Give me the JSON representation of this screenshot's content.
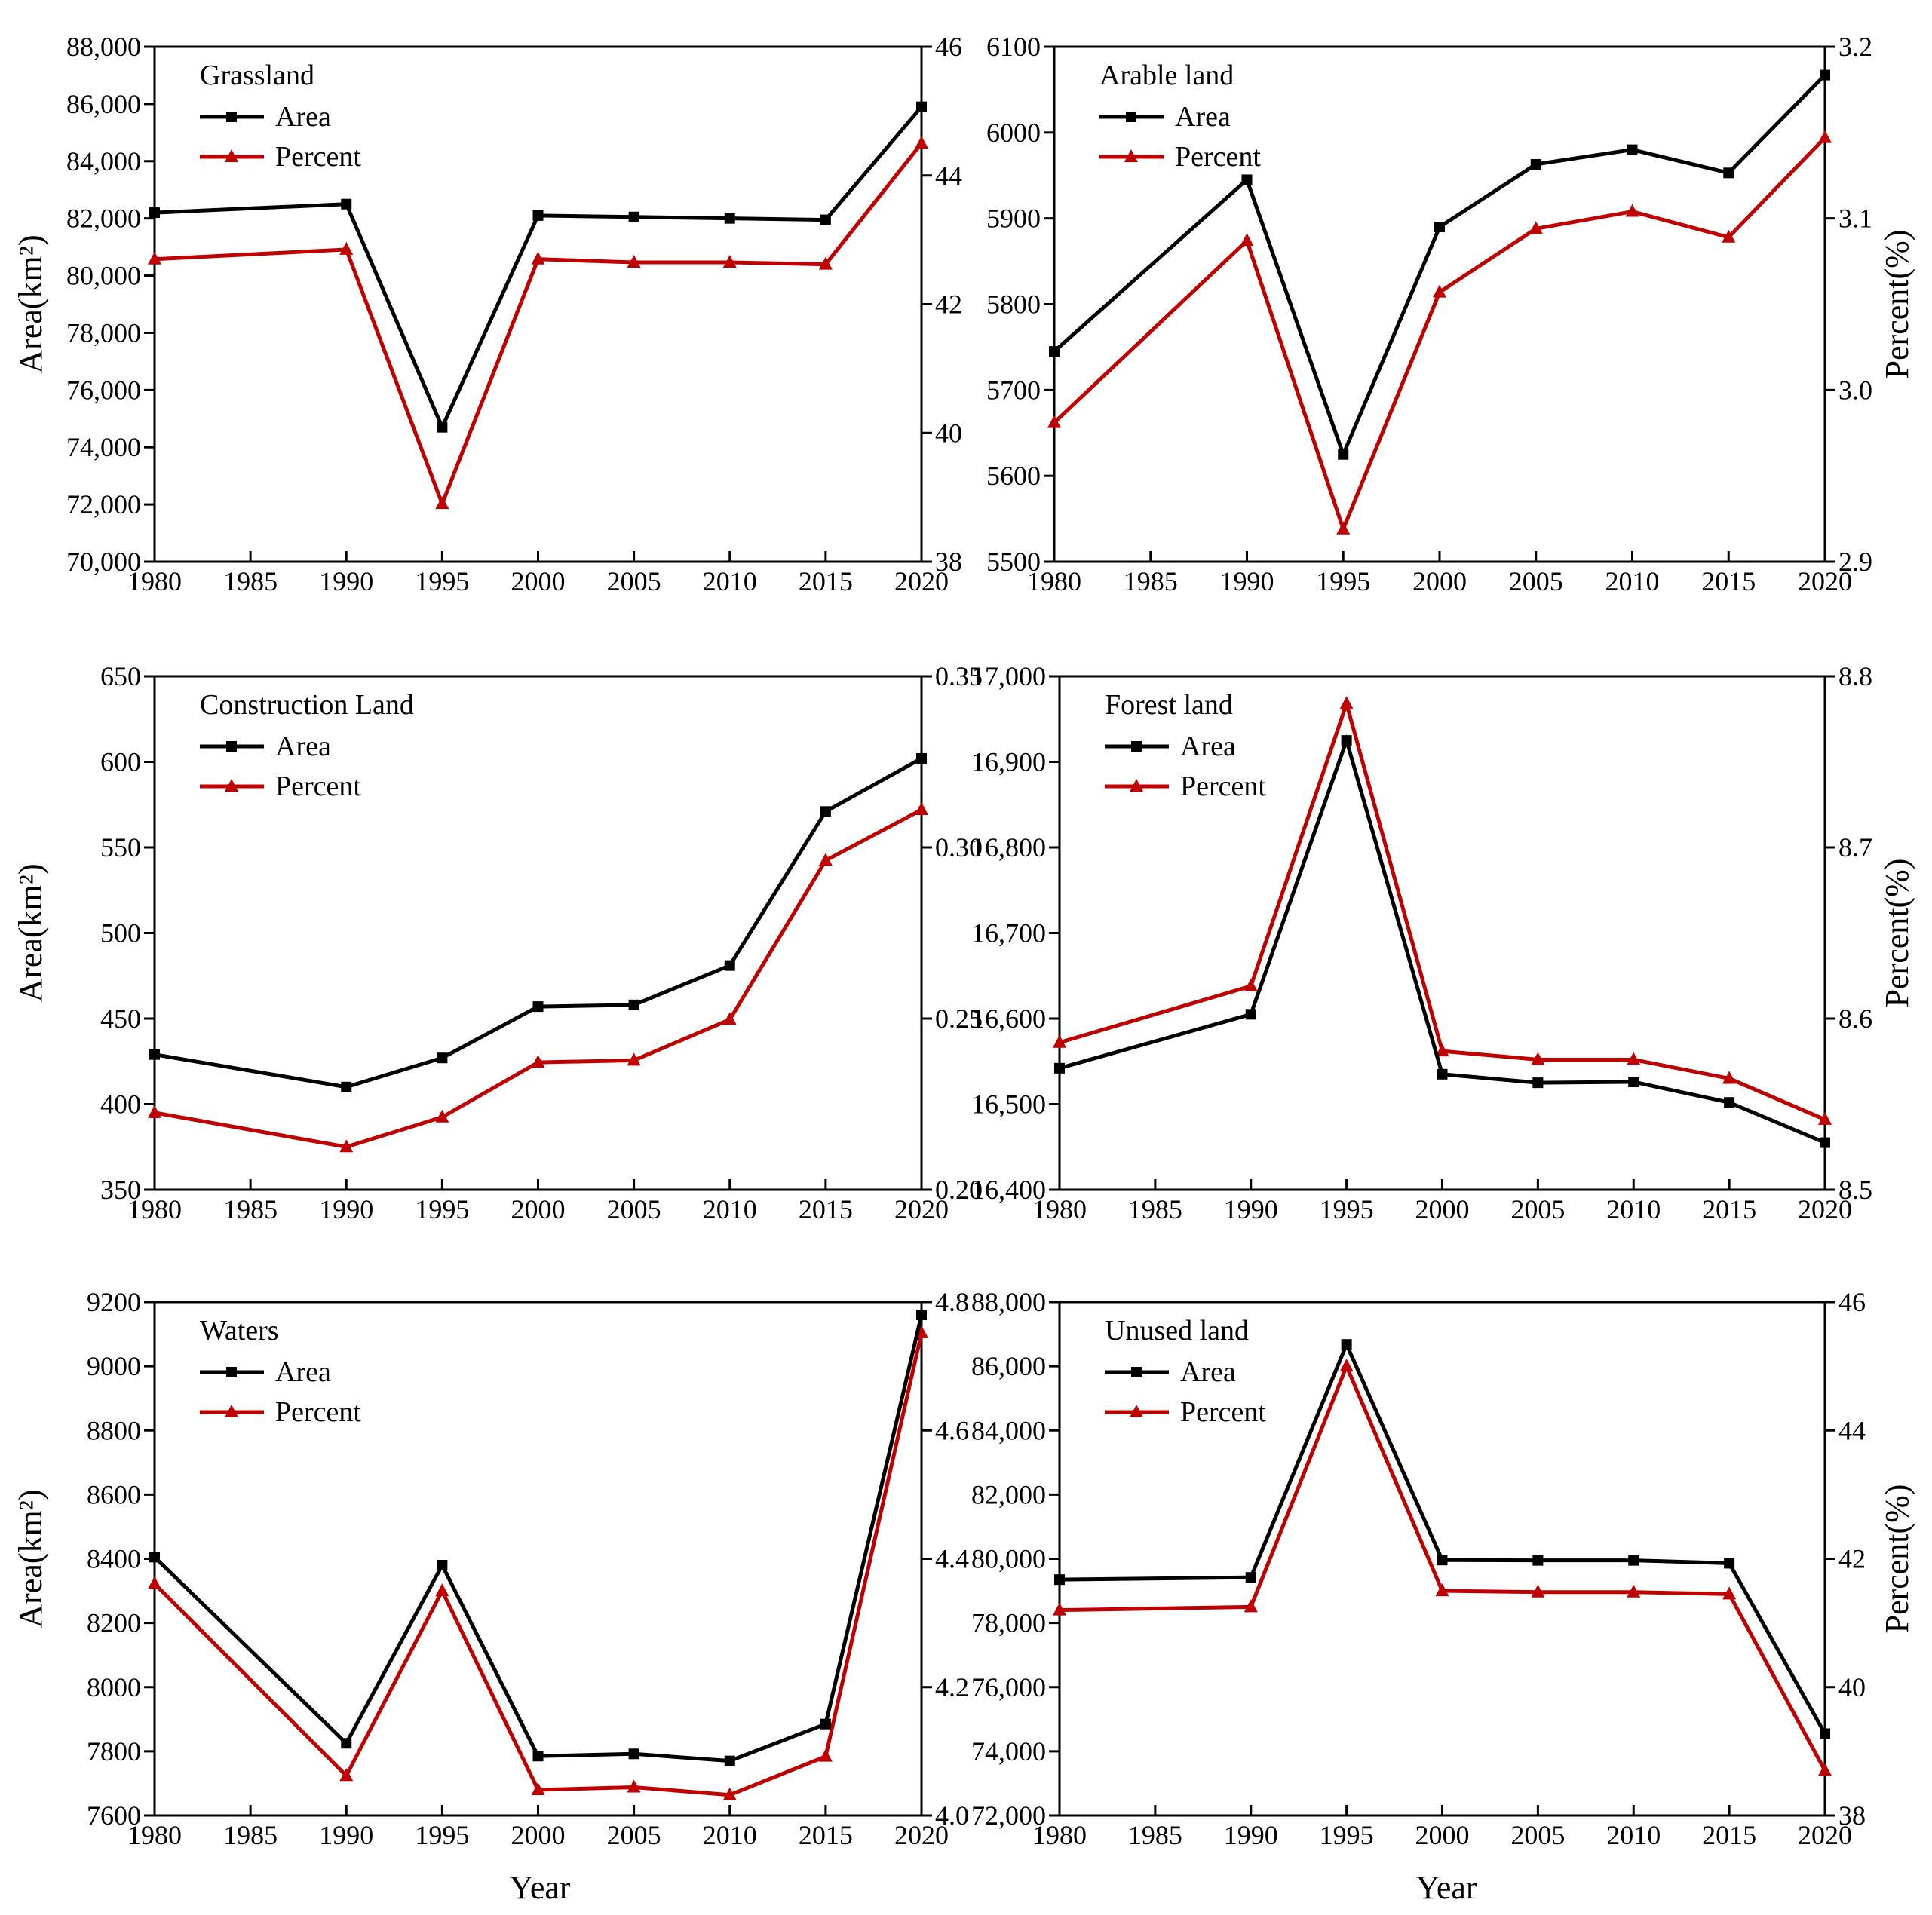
{
  "colors": {
    "area": "#000000",
    "percent": "#c00000"
  },
  "xlabel": "Year",
  "chart_data": [
    {
      "type": "line",
      "title": "Grassland",
      "x": [
        1980,
        1990,
        1995,
        2000,
        2005,
        2010,
        2015,
        2020
      ],
      "xticks": [
        "1980",
        "1985",
        "1990",
        "1995",
        "2000",
        "2005",
        "2010",
        "2015",
        "2020"
      ],
      "xlim": [
        1980,
        2020
      ],
      "ylabel": "Area(km²)",
      "ylabel2": "",
      "ylim": [
        70000,
        88000
      ],
      "ylim2": [
        38,
        46
      ],
      "yticks": [
        "70,000",
        "72,000",
        "74,000",
        "76,000",
        "78,000",
        "80,000",
        "82,000",
        "84,000",
        "86,000",
        "88,000"
      ],
      "yticks2": [
        "38",
        "40",
        "42",
        "44",
        "46"
      ],
      "series": [
        {
          "name": "Area",
          "axis": "left",
          "marker": "square",
          "values": [
            82200,
            82500,
            74700,
            82100,
            82050,
            82000,
            81950,
            85900
          ]
        },
        {
          "name": "Percent",
          "axis": "right",
          "marker": "triangle",
          "values": [
            42.7,
            42.85,
            38.9,
            42.7,
            42.65,
            42.65,
            42.62,
            44.5
          ]
        }
      ]
    },
    {
      "type": "line",
      "title": "Arable land",
      "x": [
        1980,
        1990,
        1995,
        2000,
        2005,
        2010,
        2015,
        2020
      ],
      "xticks": [
        "1980",
        "1985",
        "1990",
        "1995",
        "2000",
        "2005",
        "2010",
        "2015",
        "2020"
      ],
      "xlim": [
        1980,
        2020
      ],
      "ylabel": "",
      "ylabel2": "Percent(%)",
      "ylim": [
        5500,
        6100
      ],
      "ylim2": [
        2.9,
        3.2
      ],
      "yticks": [
        "5500",
        "5600",
        "5700",
        "5800",
        "5900",
        "6000",
        "6100"
      ],
      "yticks2": [
        "2.9",
        "3.0",
        "3.1",
        "3.2"
      ],
      "series": [
        {
          "name": "Area",
          "axis": "left",
          "marker": "square",
          "values": [
            5745,
            5945,
            5625,
            5890,
            5963,
            5980,
            5953,
            6067
          ]
        },
        {
          "name": "Percent",
          "axis": "right",
          "marker": "triangle",
          "values": [
            2.981,
            3.087,
            2.919,
            3.057,
            3.094,
            3.104,
            3.089,
            3.147
          ]
        }
      ]
    },
    {
      "type": "line",
      "title": "Construction Land",
      "x": [
        1980,
        1990,
        1995,
        2000,
        2005,
        2010,
        2015,
        2020
      ],
      "xticks": [
        "1980",
        "1985",
        "1990",
        "1995",
        "2000",
        "2005",
        "2010",
        "2015",
        "2020"
      ],
      "xlim": [
        1980,
        2020
      ],
      "ylabel": "Area(km²)",
      "ylabel2": "",
      "ylim": [
        350,
        650
      ],
      "ylim2": [
        0.2,
        0.35
      ],
      "yticks": [
        "350",
        "400",
        "450",
        "500",
        "550",
        "600",
        "650"
      ],
      "yticks2": [
        "0.20",
        "0.25",
        "0.30",
        "0.35"
      ],
      "series": [
        {
          "name": "Area",
          "axis": "left",
          "marker": "square",
          "values": [
            429,
            410,
            427,
            457,
            458,
            481,
            571,
            602
          ]
        },
        {
          "name": "Percent",
          "axis": "right",
          "marker": "triangle",
          "values": [
            0.2225,
            0.2125,
            0.2212,
            0.2372,
            0.2378,
            0.2497,
            0.2962,
            0.311
          ]
        }
      ]
    },
    {
      "type": "line",
      "title": "Forest land",
      "x": [
        1980,
        1990,
        1995,
        2000,
        2005,
        2010,
        2015,
        2020
      ],
      "xticks": [
        "1980",
        "1985",
        "1990",
        "1995",
        "2000",
        "2005",
        "2010",
        "2015",
        "2020"
      ],
      "xlim": [
        1980,
        2020
      ],
      "ylabel": "",
      "ylabel2": "Percent(%)",
      "ylim": [
        16400,
        17000
      ],
      "ylim2": [
        8.5,
        8.8
      ],
      "yticks": [
        "16,400",
        "16,500",
        "16,600",
        "16,700",
        "16,800",
        "16,900",
        "17,000"
      ],
      "yticks2": [
        "8.5",
        "8.6",
        "8.7",
        "8.8"
      ],
      "series": [
        {
          "name": "Area",
          "axis": "left",
          "marker": "square",
          "values": [
            16542,
            16605,
            16925,
            16535,
            16525,
            16526,
            16502,
            16455
          ]
        },
        {
          "name": "Percent",
          "axis": "right",
          "marker": "triangle",
          "values": [
            8.586,
            8.619,
            8.784,
            8.581,
            8.576,
            8.576,
            8.565,
            8.541
          ]
        }
      ]
    },
    {
      "type": "line",
      "title": "Waters",
      "x": [
        1980,
        1990,
        1995,
        2000,
        2005,
        2010,
        2015,
        2020
      ],
      "xticks": [
        "1980",
        "1985",
        "1990",
        "1995",
        "2000",
        "2005",
        "2010",
        "2015",
        "2020"
      ],
      "xlim": [
        1980,
        2020
      ],
      "ylabel": "Area(km²)",
      "ylabel2": "",
      "ylim": [
        7600,
        9200
      ],
      "ylim2": [
        4.0,
        4.8
      ],
      "yticks": [
        "7600",
        "7800",
        "8000",
        "8200",
        "8400",
        "8600",
        "8800",
        "9000",
        "9200"
      ],
      "yticks2": [
        "4.0",
        "4.2",
        "4.4",
        "4.6",
        "4.8"
      ],
      "series": [
        {
          "name": "Area",
          "axis": "left",
          "marker": "square",
          "values": [
            8405,
            7825,
            8380,
            7785,
            7792,
            7770,
            7885,
            9160
          ]
        },
        {
          "name": "Percent",
          "axis": "right",
          "marker": "triangle",
          "values": [
            4.361,
            4.062,
            4.35,
            4.04,
            4.044,
            4.032,
            4.092,
            4.752
          ]
        }
      ]
    },
    {
      "type": "line",
      "title": "Unused land",
      "x": [
        1980,
        1990,
        1995,
        2000,
        2005,
        2010,
        2015,
        2020
      ],
      "xticks": [
        "1980",
        "1985",
        "1990",
        "1995",
        "2000",
        "2005",
        "2010",
        "2015",
        "2020"
      ],
      "xlim": [
        1980,
        2020
      ],
      "ylabel": "",
      "ylabel2": "Percent(%)",
      "ylim": [
        72000,
        88000
      ],
      "ylim2": [
        38,
        46
      ],
      "yticks": [
        "72,000",
        "74,000",
        "76,000",
        "78,000",
        "80,000",
        "82,000",
        "84,000",
        "86,000",
        "88,000"
      ],
      "yticks2": [
        "38",
        "40",
        "42",
        "44",
        "46"
      ],
      "series": [
        {
          "name": "Area",
          "axis": "left",
          "marker": "square",
          "values": [
            79350,
            79420,
            86680,
            79960,
            79950,
            79950,
            79860,
            74550
          ]
        },
        {
          "name": "Percent",
          "axis": "right",
          "marker": "triangle",
          "values": [
            41.2,
            41.25,
            45.0,
            41.5,
            41.48,
            41.48,
            41.45,
            38.7
          ]
        }
      ]
    }
  ]
}
